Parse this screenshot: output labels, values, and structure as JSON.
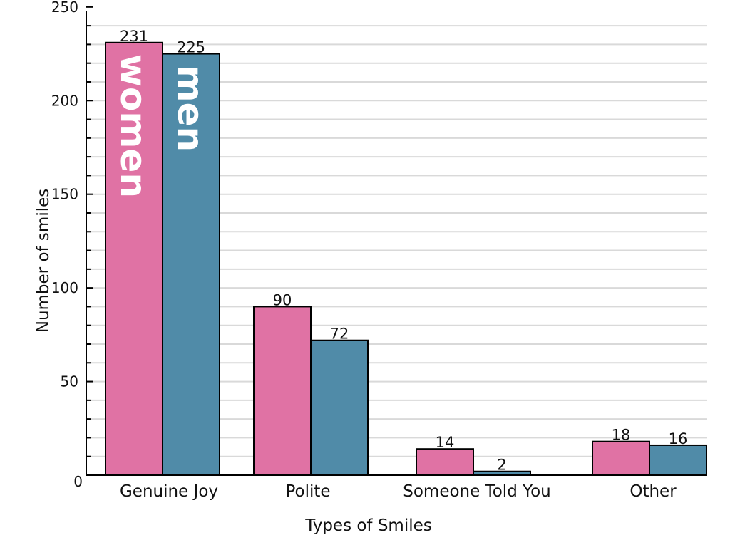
{
  "chart_data": {
    "type": "bar",
    "xlabel": "Types of Smiles",
    "ylabel": "Number of smiles",
    "categories": [
      "Genuine Joy",
      "Polite",
      "Someone Told You",
      "Other"
    ],
    "series": [
      {
        "name": "women",
        "values": [
          231,
          90,
          14,
          18
        ],
        "color": "#e072a4"
      },
      {
        "name": "men",
        "values": [
          225,
          72,
          2,
          16
        ],
        "color": "#508ba8"
      }
    ],
    "ylim": [
      0,
      250
    ],
    "yticks": [
      0,
      50,
      100,
      150,
      200,
      250
    ],
    "grid": true,
    "legend": "series names written vertically inside the Genuine Joy bars"
  }
}
